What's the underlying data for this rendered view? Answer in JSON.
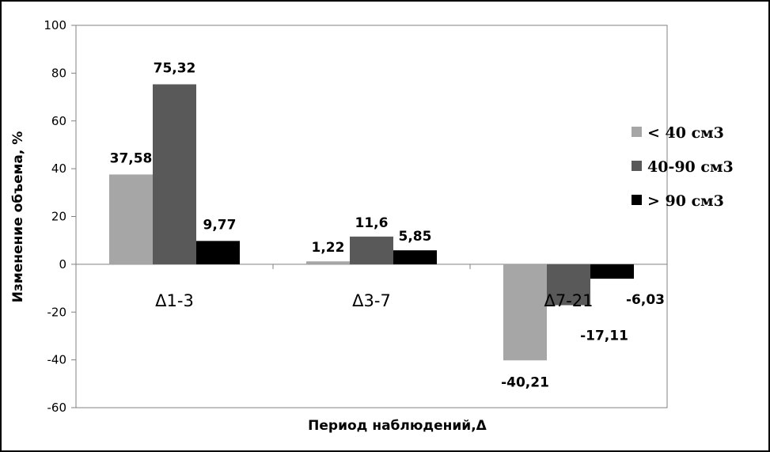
{
  "chart_data": {
    "type": "bar",
    "categories": [
      "Δ1-3",
      "Δ3-7",
      "Δ7-21"
    ],
    "series": [
      {
        "name": "< 40 см3",
        "color": "#a6a6a6",
        "values": [
          37.58,
          1.22,
          -40.21
        ],
        "labels": [
          "37,58",
          "1,22",
          "-40,21"
        ]
      },
      {
        "name": "40-90 см3",
        "color": "#595959",
        "values": [
          75.32,
          11.6,
          -17.11
        ],
        "labels": [
          "75,32",
          "11,6",
          "-17,11"
        ]
      },
      {
        "name": "> 90 см3",
        "color": "#000000",
        "values": [
          9.77,
          5.85,
          -6.03
        ],
        "labels": [
          "9,77",
          "5,85",
          "-6,03"
        ]
      }
    ],
    "xlabel": "Период наблюдений,Δ",
    "ylabel": "Изменение объема, %",
    "ylim": [
      -60,
      100
    ],
    "yticks": [
      100,
      80,
      60,
      40,
      20,
      0,
      -20,
      -40,
      -60
    ],
    "grid": false,
    "legend_position": "right"
  }
}
